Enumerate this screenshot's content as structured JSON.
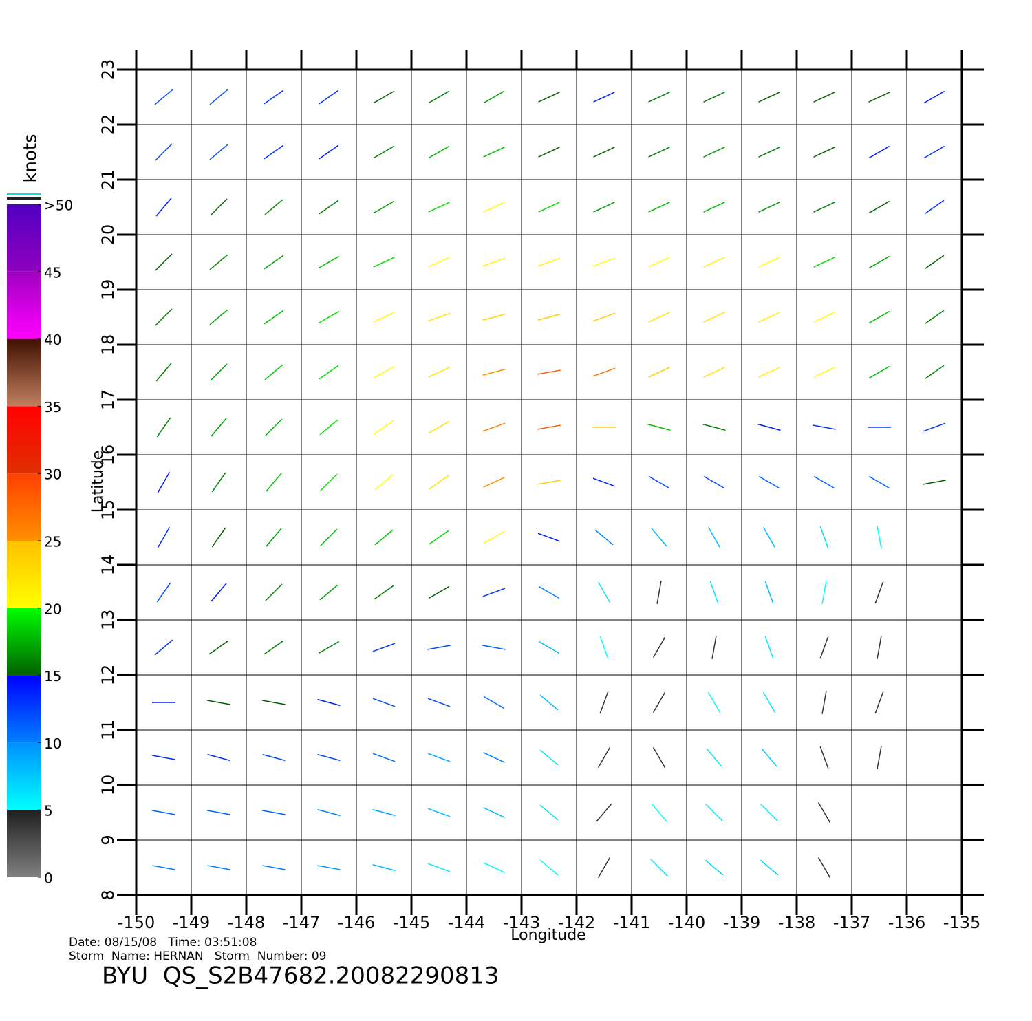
{
  "chart_data": {
    "type": "quiver",
    "xlabel": "Longitude",
    "ylabel": "Latitude",
    "xlim": [
      -150,
      -135
    ],
    "ylim": [
      8,
      23
    ],
    "xticks": [
      -150,
      -149,
      -148,
      -147,
      -146,
      -145,
      -144,
      -143,
      -142,
      -141,
      -140,
      -139,
      -138,
      -137,
      -136,
      -135
    ],
    "yticks": [
      8,
      9,
      10,
      11,
      12,
      13,
      14,
      15,
      16,
      17,
      18,
      19,
      20,
      21,
      22,
      23
    ],
    "grid": true,
    "lon": [
      -149.5,
      -148.5,
      -147.5,
      -146.5,
      -145.5,
      -144.5,
      -143.5,
      -142.5,
      -141.5,
      -140.5,
      -139.5,
      -138.5,
      -137.5,
      -136.5,
      -135.5
    ],
    "lat": [
      22.5,
      21.5,
      20.5,
      19.5,
      18.5,
      17.5,
      16.5,
      15.5,
      14.5,
      13.5,
      12.5,
      11.5,
      10.5,
      9.5,
      8.5
    ],
    "speed": [
      [
        12,
        12,
        13,
        13,
        15,
        16,
        17,
        15,
        14,
        16,
        16,
        15,
        15,
        15,
        14
      ],
      [
        12,
        12,
        13,
        14,
        16,
        18,
        18,
        15,
        15,
        16,
        17,
        16,
        15,
        14,
        13
      ],
      [
        14,
        15,
        16,
        16,
        17,
        19,
        20,
        19,
        17,
        18,
        18,
        17,
        16,
        15,
        13
      ],
      [
        15,
        16,
        17,
        18,
        19,
        20,
        21,
        21,
        20,
        20,
        21,
        20,
        19,
        17,
        15
      ],
      [
        16,
        17,
        18,
        19,
        20,
        22,
        23,
        24,
        24,
        22,
        22,
        21,
        20,
        18,
        16
      ],
      [
        16,
        17,
        18,
        19,
        20,
        22,
        25,
        28,
        27,
        24,
        22,
        21,
        20,
        18,
        16
      ],
      [
        16,
        17,
        18,
        19,
        20,
        22,
        26,
        28,
        24,
        18,
        16,
        14,
        13,
        13,
        13
      ],
      [
        14,
        16,
        18,
        19,
        20,
        22,
        25,
        24,
        14,
        12,
        12,
        11,
        11,
        11,
        15
      ],
      [
        13,
        15,
        17,
        18,
        18,
        19,
        20,
        14,
        10,
        8,
        8,
        8,
        7,
        5,
        null
      ],
      [
        12,
        14,
        16,
        17,
        16,
        15,
        13,
        10,
        6,
        4,
        6,
        8,
        5,
        4,
        null
      ],
      [
        13,
        15,
        16,
        16,
        13,
        12,
        11,
        8,
        5,
        4,
        4,
        6,
        4,
        4,
        null
      ],
      [
        14,
        15,
        15,
        14,
        12,
        12,
        11,
        8,
        4,
        4,
        5,
        6,
        4,
        4,
        null
      ],
      [
        13,
        13,
        12,
        12,
        11,
        9,
        10,
        6,
        4,
        4,
        6,
        7,
        4,
        4,
        null
      ],
      [
        11,
        11,
        11,
        10,
        9,
        8,
        8,
        6,
        4,
        5,
        6,
        6,
        4,
        null,
        null
      ],
      [
        10,
        10,
        10,
        9,
        8,
        6,
        5,
        5,
        4,
        6,
        7,
        7,
        4,
        null,
        null
      ]
    ],
    "direction": [
      [
        40,
        40,
        35,
        35,
        30,
        30,
        30,
        25,
        25,
        25,
        25,
        25,
        25,
        25,
        30
      ],
      [
        45,
        40,
        35,
        35,
        30,
        30,
        25,
        25,
        25,
        25,
        25,
        25,
        25,
        30,
        30
      ],
      [
        50,
        45,
        40,
        35,
        30,
        25,
        25,
        25,
        25,
        25,
        25,
        25,
        25,
        30,
        35
      ],
      [
        45,
        40,
        35,
        30,
        25,
        25,
        20,
        20,
        20,
        25,
        25,
        25,
        25,
        30,
        35
      ],
      [
        45,
        40,
        35,
        30,
        25,
        20,
        15,
        15,
        20,
        25,
        25,
        25,
        25,
        30,
        35
      ],
      [
        50,
        45,
        40,
        35,
        30,
        25,
        15,
        10,
        20,
        25,
        25,
        25,
        25,
        30,
        35
      ],
      [
        55,
        50,
        45,
        40,
        35,
        30,
        20,
        10,
        0,
        -15,
        -15,
        -15,
        -10,
        0,
        20
      ],
      [
        60,
        55,
        50,
        45,
        40,
        35,
        25,
        10,
        -20,
        -30,
        -30,
        -30,
        -30,
        -30,
        10
      ],
      [
        60,
        55,
        50,
        45,
        40,
        35,
        30,
        -20,
        -40,
        -50,
        -60,
        -60,
        -70,
        -80,
        null
      ],
      [
        55,
        50,
        45,
        40,
        35,
        30,
        20,
        -30,
        -60,
        80,
        -70,
        -70,
        80,
        70,
        null
      ],
      [
        40,
        35,
        35,
        30,
        20,
        10,
        -10,
        -30,
        -70,
        60,
        80,
        -70,
        70,
        80,
        null
      ],
      [
        0,
        -10,
        -10,
        -15,
        -20,
        -20,
        -30,
        -40,
        70,
        60,
        -60,
        -60,
        80,
        70,
        null
      ],
      [
        -10,
        -15,
        -15,
        -15,
        -20,
        -20,
        -25,
        -40,
        60,
        -60,
        -50,
        -50,
        -70,
        80,
        null
      ],
      [
        -10,
        -10,
        -10,
        -15,
        -15,
        -20,
        -25,
        -40,
        50,
        -50,
        -45,
        -45,
        -60,
        null,
        null
      ],
      [
        -10,
        -10,
        -10,
        -10,
        -15,
        -20,
        -25,
        -40,
        60,
        -45,
        -40,
        -40,
        -60,
        null,
        null
      ]
    ],
    "colorbar": {
      "title": "knots",
      "lim": [
        0,
        50
      ],
      "ticks": [
        0,
        5,
        10,
        15,
        20,
        25,
        30,
        35,
        40,
        45,
        {
          "value": 50,
          "label": ">50"
        }
      ],
      "bin_colors": [
        [
          "#808080",
          "#202020"
        ],
        [
          "#00ffff",
          "#0090ff"
        ],
        [
          "#0080ff",
          "#0000ff"
        ],
        [
          "#006000",
          "#00ff00"
        ],
        [
          "#ffff00",
          "#ffc000"
        ],
        [
          "#ff9000",
          "#ff4000"
        ],
        [
          "#e03000",
          "#ff0000"
        ],
        [
          "#c08060",
          "#401000"
        ],
        [
          "#ff00ff",
          "#a000c0"
        ],
        [
          "#9000c0",
          "#5000c0"
        ]
      ]
    },
    "info_line1": "Date: 08/15/08   Time: 03:51:08",
    "info_line2": "Storm  Name: HERNAN   Storm  Number: 09",
    "footer": "BYU  QS_S2B47682.20082290813"
  }
}
